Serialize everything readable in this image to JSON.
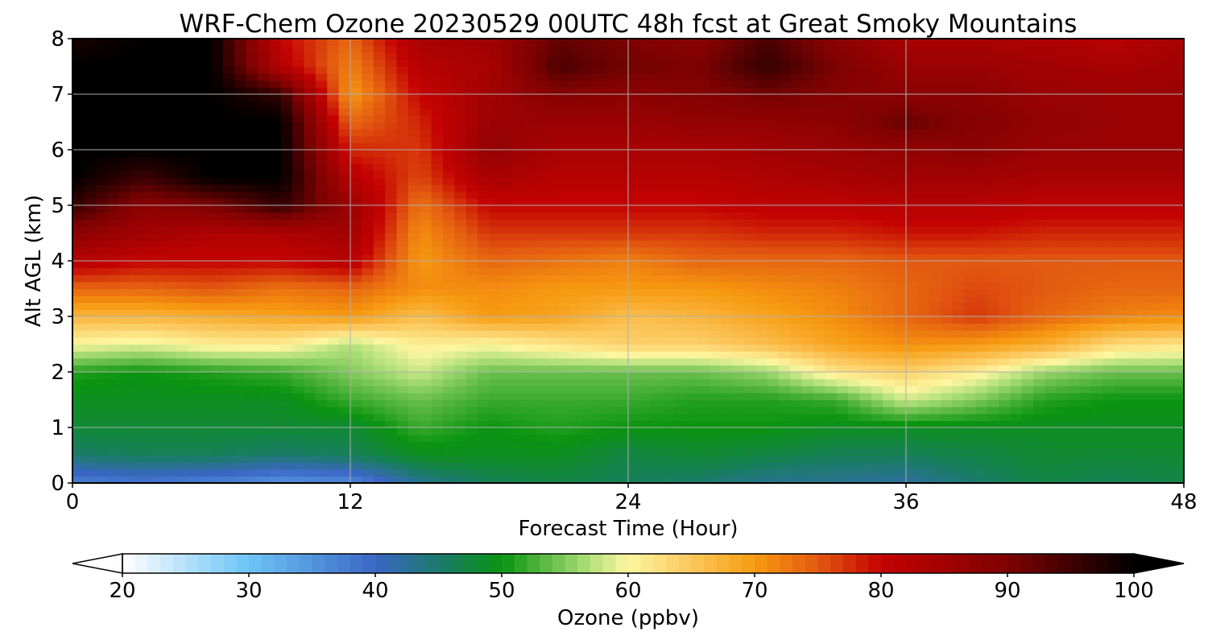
{
  "chart_data": {
    "type": "heatmap",
    "title": "WRF-Chem Ozone  20230529 00UTC 48h fcst at Great Smoky Mountains",
    "xlabel": "Forecast Time (Hour)",
    "ylabel": "Alt AGL (km)",
    "xlim": [
      0,
      48
    ],
    "ylim": [
      0,
      8
    ],
    "x_ticks": [
      "0",
      "12",
      "24",
      "36",
      "48"
    ],
    "y_ticks": [
      "0",
      "1",
      "2",
      "3",
      "4",
      "5",
      "6",
      "7",
      "8"
    ],
    "grid": true,
    "x": [
      0,
      3,
      6,
      9,
      12,
      15,
      18,
      21,
      24,
      27,
      30,
      33,
      36,
      39,
      42,
      45,
      48
    ],
    "y": [
      0,
      0.5,
      1,
      1.5,
      2,
      2.5,
      3,
      3.5,
      4,
      4.5,
      5,
      5.5,
      6,
      6.5,
      7,
      7.5,
      8
    ],
    "z": [
      [
        37,
        38,
        37,
        35,
        36,
        43,
        46,
        47,
        46,
        45,
        43,
        43,
        42,
        45,
        47,
        46,
        47
      ],
      [
        45,
        46,
        46,
        45,
        46,
        49,
        49,
        49,
        47,
        48,
        47,
        46,
        46,
        47,
        48,
        48,
        48
      ],
      [
        48,
        48,
        48,
        48,
        48,
        52,
        50,
        51,
        50,
        50,
        50,
        49,
        49,
        49,
        49,
        49,
        49
      ],
      [
        49,
        49,
        49,
        49,
        52,
        54,
        52,
        52,
        52,
        51,
        51,
        52,
        58,
        55,
        51,
        50,
        50
      ],
      [
        51,
        50,
        51,
        52,
        55,
        58,
        54,
        54,
        54,
        54,
        56,
        62,
        64,
        61,
        56,
        54,
        54
      ],
      [
        60,
        59,
        61,
        61,
        57,
        61,
        60,
        62,
        64,
        64,
        66,
        69,
        71,
        70,
        68,
        63,
        62
      ],
      [
        67,
        67,
        68,
        69,
        70,
        66,
        70,
        69,
        66,
        67,
        69,
        71,
        74,
        77,
        74,
        72,
        71
      ],
      [
        74,
        74,
        75,
        73,
        74,
        71,
        71,
        70,
        70,
        70,
        71,
        72,
        74,
        76,
        75,
        74,
        74
      ],
      [
        82,
        80,
        80,
        80,
        82,
        70,
        74,
        73,
        72,
        74,
        74,
        74,
        75,
        75,
        75,
        75,
        75
      ],
      [
        88,
        85,
        83,
        83,
        85,
        71,
        77,
        77,
        77,
        77,
        78,
        78,
        79,
        79,
        78,
        78,
        78
      ],
      [
        96,
        88,
        90,
        96,
        86,
        73,
        80,
        80,
        80,
        80,
        81,
        81,
        82,
        82,
        81,
        81,
        81
      ],
      [
        100,
        95,
        100,
        100,
        82,
        76,
        84,
        82,
        82,
        82,
        83,
        84,
        85,
        85,
        84,
        84,
        84
      ],
      [
        100,
        100,
        100,
        100,
        78,
        77,
        87,
        84,
        84,
        84,
        85,
        86,
        87,
        88,
        86,
        86,
        86
      ],
      [
        100,
        100,
        100,
        100,
        74,
        78,
        86,
        86,
        86,
        87,
        87,
        88,
        92,
        89,
        87,
        86,
        86
      ],
      [
        100,
        100,
        100,
        96,
        70,
        80,
        85,
        89,
        88,
        89,
        91,
        89,
        88,
        88,
        86,
        86,
        86
      ],
      [
        100,
        100,
        100,
        82,
        72,
        82,
        84,
        94,
        91,
        90,
        96,
        90,
        86,
        86,
        85,
        84,
        85
      ],
      [
        98,
        100,
        100,
        80,
        74,
        84,
        85,
        92,
        90,
        88,
        94,
        88,
        84,
        84,
        83,
        82,
        84
      ]
    ],
    "colorbar": {
      "label": "Ozone  (ppbv)",
      "min": 20,
      "max": 100,
      "ticks": [
        "20",
        "30",
        "40",
        "50",
        "60",
        "70",
        "80",
        "90",
        "100"
      ],
      "extend": "both",
      "stops": [
        {
          "v": 20,
          "c": "#ffffff"
        },
        {
          "v": 30,
          "c": "#6cc4f5"
        },
        {
          "v": 40,
          "c": "#3b66c5"
        },
        {
          "v": 45,
          "c": "#1c7a6c"
        },
        {
          "v": 50,
          "c": "#0a9410"
        },
        {
          "v": 57,
          "c": "#b2e07a"
        },
        {
          "v": 60,
          "c": "#fdf6a0"
        },
        {
          "v": 65,
          "c": "#fbc75c"
        },
        {
          "v": 70,
          "c": "#f79a10"
        },
        {
          "v": 75,
          "c": "#e35a10"
        },
        {
          "v": 80,
          "c": "#c40202"
        },
        {
          "v": 90,
          "c": "#7e0202"
        },
        {
          "v": 100,
          "c": "#000000"
        }
      ]
    }
  }
}
